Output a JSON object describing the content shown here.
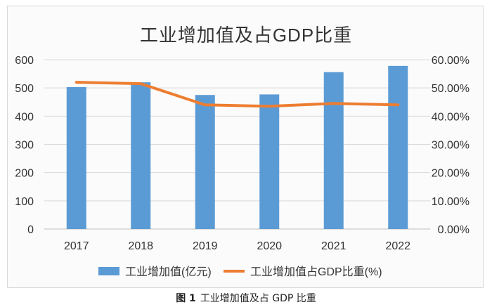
{
  "chart_data": {
    "type": "bar",
    "title": "工业增加值及占GDP比重",
    "categories": [
      "2017",
      "2018",
      "2019",
      "2020",
      "2021",
      "2022"
    ],
    "series": [
      {
        "name": "工业增加值(亿元)",
        "kind": "bar",
        "axis": "left",
        "color": "#5b9bd5",
        "values": [
          503,
          520,
          475,
          477,
          556,
          578
        ]
      },
      {
        "name": "工业增加值占GDP比重(%)",
        "kind": "line",
        "axis": "right",
        "color": "#ed7d31",
        "values": [
          52.0,
          51.5,
          44.0,
          43.5,
          44.5,
          44.0
        ]
      }
    ],
    "left_axis": {
      "min": 0,
      "max": 600,
      "ticks": [
        "0",
        "100",
        "200",
        "300",
        "400",
        "500",
        "600"
      ]
    },
    "right_axis": {
      "min": 0,
      "max": 60,
      "ticks": [
        "0.00%",
        "10.00%",
        "20.00%",
        "30.00%",
        "40.00%",
        "50.00%",
        "60.00%"
      ]
    },
    "grid": true,
    "legend_position": "bottom"
  },
  "caption": {
    "label": "图 1",
    "text": "工业增加值及占 GDP 比重"
  }
}
